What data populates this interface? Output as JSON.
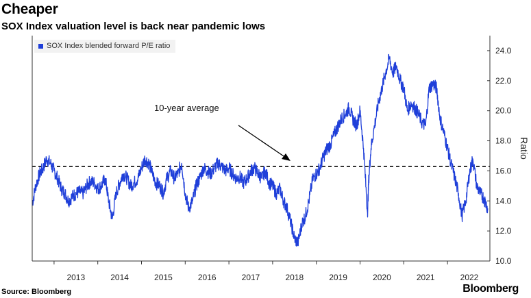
{
  "title": "Cheaper",
  "subtitle": "SOX Index valuation level is back near pandemic lows",
  "source": "Source: Bloomberg",
  "logo_text": "Bloomberg",
  "chart_data": {
    "type": "line",
    "ylabel": "Ratio",
    "ylim": [
      10.0,
      25.0
    ],
    "y_ticks": [
      "10.0",
      "12.0",
      "14.0",
      "16.0",
      "18.0",
      "20.0",
      "22.0",
      "24.0"
    ],
    "x_ticks": [
      "2013",
      "2014",
      "2015",
      "2016",
      "2017",
      "2018",
      "2019",
      "2020",
      "2021",
      "2022"
    ],
    "x_range": [
      2012.5,
      2022.97
    ],
    "y_axis_position": "right",
    "grid": false,
    "legend": "top-left",
    "reference_line": {
      "value": 16.3,
      "style": "dashed",
      "label": "10-year average"
    },
    "series": [
      {
        "name": "SOX Index blended forward P/E ratio",
        "color": "#1f3fd9",
        "x": [
          2012.5,
          2012.58,
          2012.67,
          2012.75,
          2012.83,
          2012.92,
          2013.0,
          2013.08,
          2013.17,
          2013.25,
          2013.33,
          2013.42,
          2013.5,
          2013.58,
          2013.67,
          2013.75,
          2013.83,
          2013.92,
          2014.0,
          2014.08,
          2014.17,
          2014.25,
          2014.33,
          2014.42,
          2014.5,
          2014.58,
          2014.67,
          2014.75,
          2014.83,
          2014.92,
          2015.0,
          2015.08,
          2015.17,
          2015.25,
          2015.33,
          2015.42,
          2015.5,
          2015.58,
          2015.67,
          2015.75,
          2015.83,
          2015.92,
          2016.0,
          2016.08,
          2016.17,
          2016.25,
          2016.33,
          2016.42,
          2016.5,
          2016.58,
          2016.67,
          2016.75,
          2016.83,
          2016.92,
          2017.0,
          2017.08,
          2017.17,
          2017.25,
          2017.33,
          2017.42,
          2017.5,
          2017.58,
          2017.67,
          2017.75,
          2017.83,
          2017.92,
          2018.0,
          2018.08,
          2018.17,
          2018.25,
          2018.33,
          2018.42,
          2018.5,
          2018.58,
          2018.67,
          2018.75,
          2018.83,
          2018.92,
          2019.0,
          2019.08,
          2019.17,
          2019.25,
          2019.33,
          2019.42,
          2019.5,
          2019.58,
          2019.67,
          2019.75,
          2019.83,
          2019.92,
          2020.0,
          2020.08,
          2020.17,
          2020.2,
          2020.25,
          2020.33,
          2020.42,
          2020.5,
          2020.58,
          2020.67,
          2020.75,
          2020.83,
          2020.92,
          2021.0,
          2021.08,
          2021.17,
          2021.25,
          2021.33,
          2021.42,
          2021.5,
          2021.58,
          2021.67,
          2021.75,
          2021.83,
          2021.92,
          2022.0,
          2022.08,
          2022.17,
          2022.25,
          2022.33,
          2022.42,
          2022.5,
          2022.58,
          2022.67,
          2022.75,
          2022.83,
          2022.92
        ],
        "y": [
          13.8,
          15.0,
          15.8,
          16.2,
          16.8,
          16.5,
          16.0,
          15.5,
          14.8,
          14.5,
          14.0,
          14.3,
          14.5,
          14.6,
          14.5,
          15.0,
          15.3,
          15.2,
          14.8,
          15.0,
          15.5,
          14.0,
          12.8,
          14.5,
          15.2,
          15.8,
          15.5,
          15.0,
          15.2,
          15.5,
          16.2,
          16.8,
          16.5,
          15.8,
          15.2,
          15.0,
          14.5,
          15.5,
          16.0,
          15.5,
          15.8,
          16.5,
          14.5,
          13.5,
          14.0,
          15.0,
          15.5,
          16.2,
          16.0,
          15.8,
          16.2,
          16.5,
          16.3,
          16.0,
          16.2,
          15.8,
          15.5,
          15.6,
          15.2,
          15.5,
          16.0,
          16.2,
          15.8,
          15.5,
          16.0,
          15.2,
          15.0,
          14.5,
          14.8,
          14.0,
          13.5,
          12.5,
          11.5,
          11.2,
          12.5,
          13.0,
          14.0,
          15.5,
          15.8,
          16.2,
          17.0,
          17.5,
          17.8,
          18.5,
          19.0,
          19.5,
          19.8,
          20.2,
          19.5,
          19.0,
          20.0,
          17.5,
          13.2,
          15.5,
          17.5,
          19.0,
          20.5,
          21.5,
          22.5,
          23.5,
          22.5,
          23.0,
          22.0,
          21.5,
          20.0,
          20.5,
          20.2,
          19.8,
          19.2,
          19.0,
          21.5,
          21.8,
          21.5,
          19.5,
          18.5,
          17.5,
          16.5,
          15.5,
          14.5,
          13.0,
          14.0,
          15.8,
          16.8,
          15.0,
          14.5,
          14.2,
          13.5
        ]
      }
    ]
  }
}
